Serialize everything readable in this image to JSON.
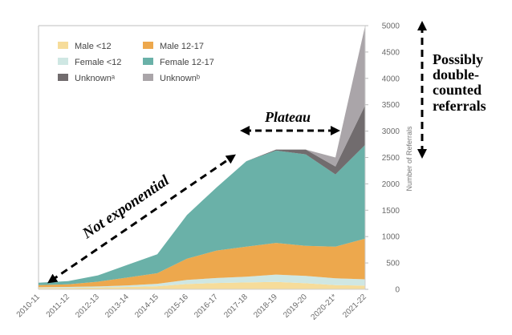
{
  "chart_data": {
    "type": "area",
    "stacked": true,
    "categories": [
      "2010-11",
      "2011-12",
      "2012-13",
      "2013-14",
      "2014-15",
      "2015-16",
      "2016-17",
      "2017-18",
      "2018-19",
      "2019-20",
      "2020-21*",
      "2021-22"
    ],
    "series": [
      {
        "name": "Male <12",
        "color": "#f6dc9a",
        "values": [
          25,
          28,
          35,
          45,
          60,
          100,
          120,
          130,
          140,
          115,
          80,
          70
        ]
      },
      {
        "name": "Female <12",
        "color": "#cfe7e3",
        "values": [
          15,
          18,
          20,
          30,
          45,
          80,
          95,
          110,
          140,
          140,
          130,
          120
        ]
      },
      {
        "name": "Male 12-17",
        "color": "#eda84d",
        "values": [
          40,
          50,
          90,
          150,
          200,
          400,
          520,
          570,
          600,
          570,
          600,
          770
        ]
      },
      {
        "name": "Female 12-17",
        "color": "#6ab1a8",
        "values": [
          45,
          60,
          120,
          240,
          360,
          830,
          1200,
          1620,
          1750,
          1735,
          1370,
          1780
        ]
      },
      {
        "name": "Unknownᵃ",
        "color": "#716c6e",
        "values": [
          0,
          0,
          0,
          0,
          0,
          0,
          0,
          0,
          20,
          90,
          150,
          750
        ]
      },
      {
        "name": "Unknownᵇ",
        "color": "#aaa5a9",
        "values": [
          0,
          0,
          0,
          0,
          0,
          0,
          0,
          0,
          0,
          0,
          170,
          1510
        ]
      }
    ],
    "ylim": [
      0,
      5000
    ],
    "yticks": [
      0,
      500,
      1000,
      1500,
      2000,
      2500,
      3000,
      3500,
      4000,
      4500,
      5000
    ],
    "ylabel": "Number of Referrals",
    "yaxis_side": "right",
    "legend_position": "top-left",
    "grid": false
  },
  "annotations": {
    "not_exponential": "Not exponential",
    "plateau": "Plateau",
    "possibly_line1": "Possibly",
    "possibly_line2": "double-",
    "possibly_line3": "counted",
    "possibly_line4": "referrals"
  }
}
